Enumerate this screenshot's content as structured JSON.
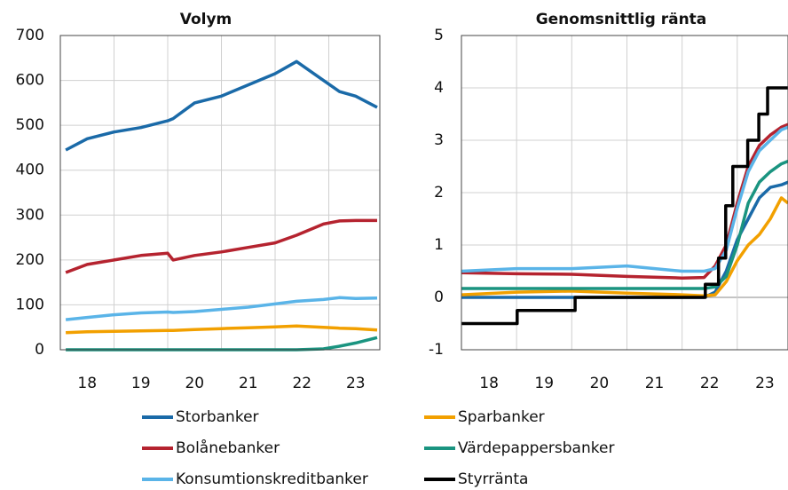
{
  "chart_data": [
    {
      "type": "line",
      "title": "Volym",
      "x": [
        18.1,
        18.5,
        19,
        19.5,
        20,
        20.1,
        20.5,
        21,
        21.5,
        22,
        22.4,
        22.9,
        23.2,
        23.5,
        23.9
      ],
      "xlim": [
        18,
        23.95
      ],
      "xticks": [
        {
          "value": 18.5,
          "label": "18"
        },
        {
          "value": 19.5,
          "label": "19"
        },
        {
          "value": 20.5,
          "label": "20"
        },
        {
          "value": 21.5,
          "label": "21"
        },
        {
          "value": 22.5,
          "label": "22"
        },
        {
          "value": 23.5,
          "label": "23"
        }
      ],
      "xgrid": [
        19,
        20,
        21,
        22,
        23
      ],
      "ylim": [
        0,
        700
      ],
      "yticks": [
        0,
        100,
        200,
        300,
        400,
        500,
        600,
        700
      ],
      "grid": true,
      "series": [
        {
          "name": "Storbanker",
          "color": "#1a6aa8",
          "values": [
            445,
            470,
            485,
            495,
            510,
            515,
            550,
            565,
            590,
            615,
            642,
            600,
            575,
            565,
            540
          ]
        },
        {
          "name": "Bolånebanker",
          "color": "#b5232f",
          "values": [
            172,
            190,
            200,
            210,
            215,
            200,
            210,
            218,
            228,
            238,
            255,
            280,
            287,
            288,
            288
          ]
        },
        {
          "name": "Konsumtionskreditbanker",
          "color": "#5ab4e8",
          "values": [
            67,
            72,
            78,
            82,
            84,
            83,
            85,
            90,
            95,
            102,
            108,
            112,
            116,
            114,
            115
          ]
        },
        {
          "name": "Sparbanker",
          "color": "#f2a000",
          "values": [
            38,
            40,
            41,
            42,
            43,
            43,
            45,
            47,
            49,
            51,
            53,
            50,
            48,
            47,
            44
          ]
        },
        {
          "name": "Värdepappersbanker",
          "color": "#1a9480",
          "values": [
            0,
            0,
            0,
            0,
            0,
            0,
            0,
            0,
            0,
            0,
            0,
            2,
            8,
            15,
            27
          ]
        }
      ]
    },
    {
      "type": "line",
      "title": "Genomsnittlig ränta",
      "x": [
        18,
        19,
        20,
        21,
        22,
        22.4,
        22.6,
        22.8,
        23,
        23.2,
        23.4,
        23.6,
        23.8,
        23.92
      ],
      "xlim": [
        18,
        23.92
      ],
      "xticks": [
        {
          "value": 18.5,
          "label": "18"
        },
        {
          "value": 19.5,
          "label": "19"
        },
        {
          "value": 20.5,
          "label": "20"
        },
        {
          "value": 21.5,
          "label": "21"
        },
        {
          "value": 22.5,
          "label": "22"
        },
        {
          "value": 23.5,
          "label": "23"
        }
      ],
      "xgrid": [
        19,
        20,
        21,
        22,
        23
      ],
      "ylim": [
        -1,
        5
      ],
      "yticks": [
        -1,
        0,
        1,
        2,
        3,
        4,
        5
      ],
      "grid": true,
      "series": [
        {
          "name": "Storbanker",
          "color": "#1a6aa8",
          "values": [
            0,
            0,
            0,
            0,
            0,
            0,
            0.1,
            0.5,
            1.1,
            1.5,
            1.9,
            2.1,
            2.15,
            2.2
          ]
        },
        {
          "name": "Bolånebanker",
          "color": "#b5232f",
          "values": [
            0.47,
            0.45,
            0.44,
            0.4,
            0.37,
            0.38,
            0.6,
            1.0,
            1.8,
            2.5,
            2.9,
            3.1,
            3.25,
            3.3
          ]
        },
        {
          "name": "Konsumtionskreditbanker",
          "color": "#5ab4e8",
          "values": [
            0.5,
            0.55,
            0.55,
            0.6,
            0.5,
            0.5,
            0.55,
            0.9,
            1.7,
            2.4,
            2.8,
            3.0,
            3.2,
            3.25
          ]
        },
        {
          "name": "Sparbanker",
          "color": "#f2a000",
          "values": [
            0.05,
            0.1,
            0.12,
            0.08,
            0.05,
            0.03,
            0.05,
            0.3,
            0.7,
            1.0,
            1.2,
            1.5,
            1.9,
            1.8
          ]
        },
        {
          "name": "Värdepappersbanker",
          "color": "#1a9480",
          "values": [
            0.17,
            0.17,
            0.17,
            0.17,
            0.17,
            0.17,
            0.2,
            0.4,
            1.0,
            1.8,
            2.2,
            2.4,
            2.55,
            2.6
          ]
        },
        {
          "name": "Styrränta",
          "color": "#000000",
          "x": [
            18,
            19.01,
            19.01,
            20.06,
            20.06,
            22.42,
            22.42,
            22.66,
            22.66,
            22.79,
            22.79,
            22.92,
            22.92,
            23.19,
            23.19,
            23.39,
            23.39,
            23.55,
            23.55,
            23.92
          ],
          "values": [
            -0.5,
            -0.5,
            -0.25,
            -0.25,
            0,
            0,
            0.25,
            0.25,
            0.75,
            0.75,
            1.75,
            1.75,
            2.5,
            2.5,
            3,
            3,
            3.5,
            3.5,
            4,
            4
          ]
        }
      ]
    }
  ]
}
